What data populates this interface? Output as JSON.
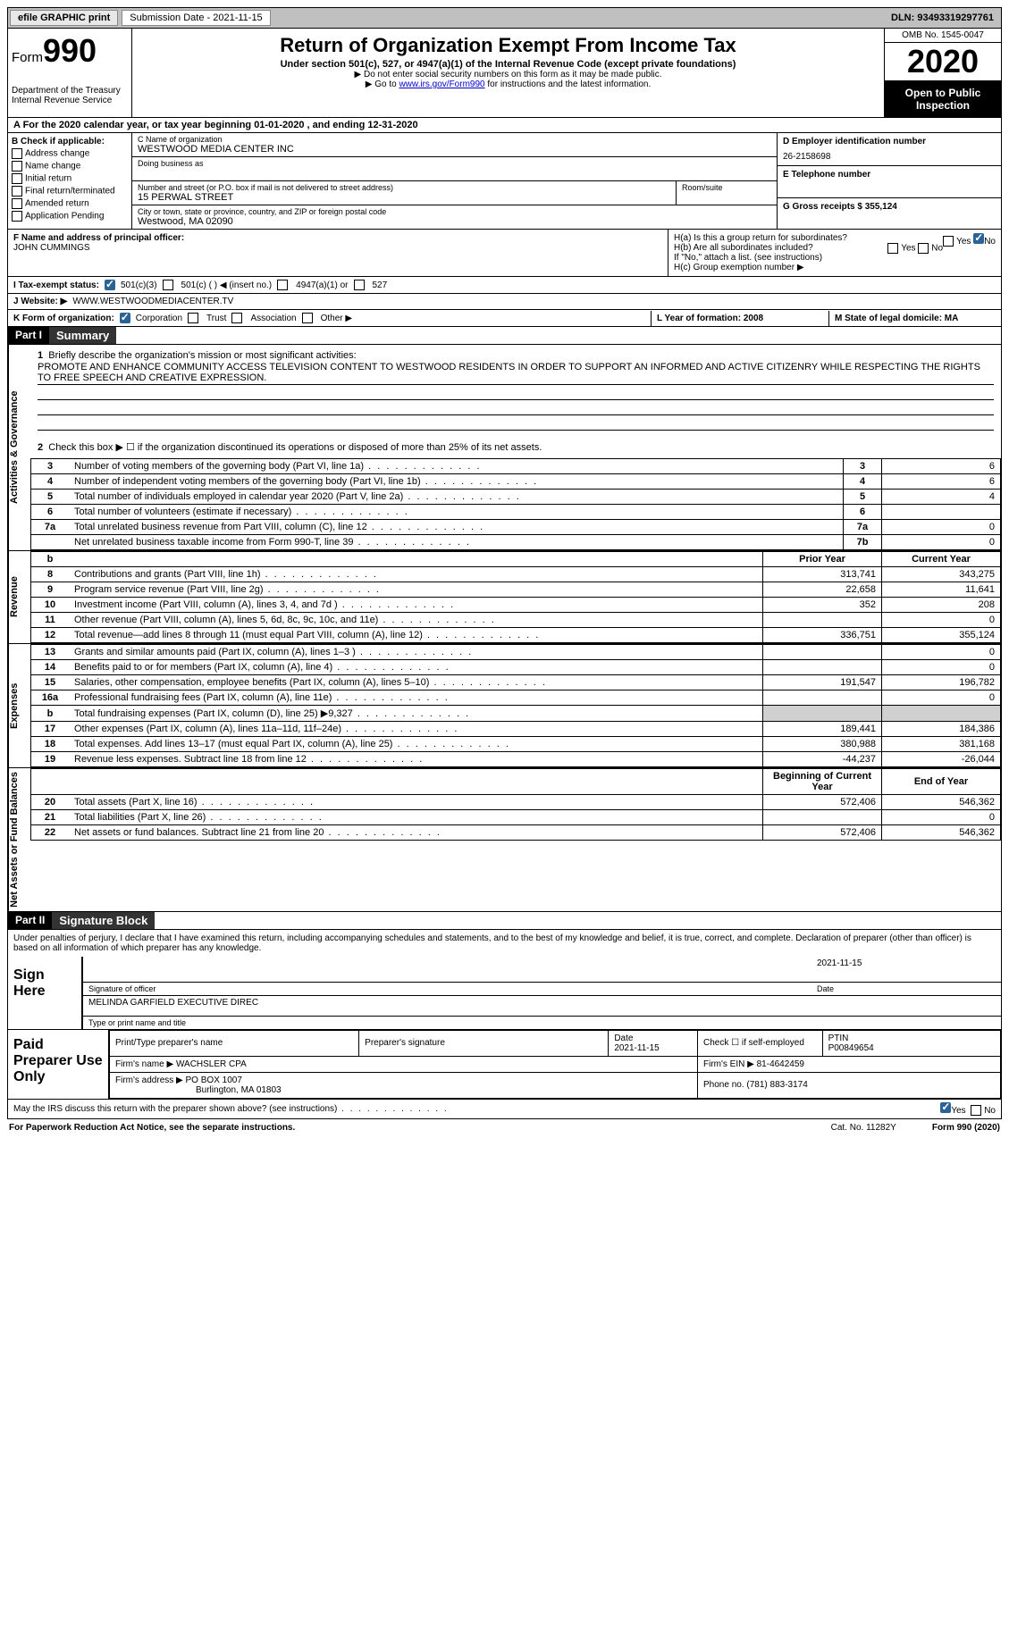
{
  "top": {
    "efile": "efile GRAPHIC print",
    "sub_label": "Submission Date - 2021-11-15",
    "dln": "DLN: 93493319297761"
  },
  "header": {
    "form_word": "Form",
    "form_num": "990",
    "dept": "Department of the Treasury\nInternal Revenue Service",
    "title": "Return of Organization Exempt From Income Tax",
    "sub": "Under section 501(c), 527, or 4947(a)(1) of the Internal Revenue Code (except private foundations)",
    "note1": "▶ Do not enter social security numbers on this form as it may be made public.",
    "note2_pre": "▶ Go to ",
    "note2_link": "www.irs.gov/Form990",
    "note2_post": " for instructions and the latest information.",
    "omb": "OMB No. 1545-0047",
    "year": "2020",
    "opi": "Open to Public Inspection"
  },
  "line_a": "A For the 2020 calendar year, or tax year beginning 01-01-2020   , and ending 12-31-2020",
  "box_b": {
    "title": "B Check if applicable:",
    "items": [
      "Address change",
      "Name change",
      "Initial return",
      "Final return/terminated",
      "Amended return",
      "Application Pending"
    ]
  },
  "box_c": {
    "name_lbl": "C Name of organization",
    "name": "WESTWOOD MEDIA CENTER INC",
    "dba_lbl": "Doing business as",
    "addr_lbl": "Number and street (or P.O. box if mail is not delivered to street address)",
    "room_lbl": "Room/suite",
    "addr": "15 PERWAL STREET",
    "city_lbl": "City or town, state or province, country, and ZIP or foreign postal code",
    "city": "Westwood, MA  02090"
  },
  "box_d": {
    "lbl": "D Employer identification number",
    "val": "26-2158698"
  },
  "box_e": {
    "lbl": "E Telephone number",
    "val": ""
  },
  "box_g": {
    "lbl": "G Gross receipts $ 355,124"
  },
  "box_f": {
    "lbl": "F Name and address of principal officer:",
    "val": "JOHN CUMMINGS"
  },
  "box_h": {
    "a": "H(a)  Is this a group return for subordinates?",
    "b": "H(b)  Are all subordinates included?",
    "note": "If \"No,\" attach a list. (see instructions)",
    "c": "H(c)  Group exemption number ▶",
    "yes": "Yes",
    "no": "No"
  },
  "line_i": {
    "lbl": "I   Tax-exempt status:",
    "o1": "501(c)(3)",
    "o2": "501(c) (  ) ◀ (insert no.)",
    "o3": "4947(a)(1) or",
    "o4": "527"
  },
  "line_j": {
    "lbl": "J   Website: ▶",
    "val": "WWW.WESTWOODMEDIACENTER.TV"
  },
  "line_k": {
    "lbl": "K Form of organization:",
    "o1": "Corporation",
    "o2": "Trust",
    "o3": "Association",
    "o4": "Other ▶"
  },
  "line_l": "L Year of formation: 2008",
  "line_m": "M State of legal domicile: MA",
  "part1": {
    "hdr": "Part I",
    "title": "Summary",
    "side_ag": "Activities & Governance",
    "side_rev": "Revenue",
    "side_exp": "Expenses",
    "side_na": "Net Assets or Fund Balances",
    "q1": "Briefly describe the organization's mission or most significant activities:",
    "mission": "PROMOTE AND ENHANCE COMMUNITY ACCESS TELEVISION CONTENT TO WESTWOOD RESIDENTS IN ORDER TO SUPPORT AN INFORMED AND ACTIVE CITIZENRY WHILE RESPECTING THE RIGHTS TO FREE SPEECH AND CREATIVE EXPRESSION.",
    "q2": "Check this box ▶ ☐  if the organization discontinued its operations or disposed of more than 25% of its net assets.",
    "rows_gov": [
      {
        "n": "3",
        "d": "Number of voting members of the governing body (Part VI, line 1a)",
        "c": "3",
        "v": "6"
      },
      {
        "n": "4",
        "d": "Number of independent voting members of the governing body (Part VI, line 1b)",
        "c": "4",
        "v": "6"
      },
      {
        "n": "5",
        "d": "Total number of individuals employed in calendar year 2020 (Part V, line 2a)",
        "c": "5",
        "v": "4"
      },
      {
        "n": "6",
        "d": "Total number of volunteers (estimate if necessary)",
        "c": "6",
        "v": ""
      },
      {
        "n": "7a",
        "d": "Total unrelated business revenue from Part VIII, column (C), line 12",
        "c": "7a",
        "v": "0"
      },
      {
        "n": "",
        "d": "Net unrelated business taxable income from Form 990-T, line 39",
        "c": "7b",
        "v": "0"
      }
    ],
    "col_hdr": {
      "b": "b",
      "py": "Prior Year",
      "cy": "Current Year"
    },
    "rows_rev": [
      {
        "n": "8",
        "d": "Contributions and grants (Part VIII, line 1h)",
        "py": "313,741",
        "cy": "343,275"
      },
      {
        "n": "9",
        "d": "Program service revenue (Part VIII, line 2g)",
        "py": "22,658",
        "cy": "11,641"
      },
      {
        "n": "10",
        "d": "Investment income (Part VIII, column (A), lines 3, 4, and 7d )",
        "py": "352",
        "cy": "208"
      },
      {
        "n": "11",
        "d": "Other revenue (Part VIII, column (A), lines 5, 6d, 8c, 9c, 10c, and 11e)",
        "py": "",
        "cy": "0"
      },
      {
        "n": "12",
        "d": "Total revenue—add lines 8 through 11 (must equal Part VIII, column (A), line 12)",
        "py": "336,751",
        "cy": "355,124"
      }
    ],
    "rows_exp": [
      {
        "n": "13",
        "d": "Grants and similar amounts paid (Part IX, column (A), lines 1–3 )",
        "py": "",
        "cy": "0"
      },
      {
        "n": "14",
        "d": "Benefits paid to or for members (Part IX, column (A), line 4)",
        "py": "",
        "cy": "0"
      },
      {
        "n": "15",
        "d": "Salaries, other compensation, employee benefits (Part IX, column (A), lines 5–10)",
        "py": "191,547",
        "cy": "196,782"
      },
      {
        "n": "16a",
        "d": "Professional fundraising fees (Part IX, column (A), line 11e)",
        "py": "",
        "cy": "0"
      },
      {
        "n": "b",
        "d": "Total fundraising expenses (Part IX, column (D), line 25) ▶9,327",
        "py": "shade",
        "cy": "shade"
      },
      {
        "n": "17",
        "d": "Other expenses (Part IX, column (A), lines 11a–11d, 11f–24e)",
        "py": "189,441",
        "cy": "184,386"
      },
      {
        "n": "18",
        "d": "Total expenses. Add lines 13–17 (must equal Part IX, column (A), line 25)",
        "py": "380,988",
        "cy": "381,168"
      },
      {
        "n": "19",
        "d": "Revenue less expenses. Subtract line 18 from line 12",
        "py": "-44,237",
        "cy": "-26,044"
      }
    ],
    "col_hdr2": {
      "by": "Beginning of Current Year",
      "ey": "End of Year"
    },
    "rows_na": [
      {
        "n": "20",
        "d": "Total assets (Part X, line 16)",
        "py": "572,406",
        "cy": "546,362"
      },
      {
        "n": "21",
        "d": "Total liabilities (Part X, line 26)",
        "py": "",
        "cy": "0"
      },
      {
        "n": "22",
        "d": "Net assets or fund balances. Subtract line 21 from line 20",
        "py": "572,406",
        "cy": "546,362"
      }
    ]
  },
  "part2": {
    "hdr": "Part II",
    "title": "Signature Block",
    "decl": "Under penalties of perjury, I declare that I have examined this return, including accompanying schedules and statements, and to the best of my knowledge and belief, it is true, correct, and complete. Declaration of preparer (other than officer) is based on all information of which preparer has any knowledge.",
    "sign_here": "Sign Here",
    "sig_officer": "Signature of officer",
    "date": "Date",
    "date_val": "2021-11-15",
    "name_title": "MELINDA GARFIELD  EXECUTIVE DIREC",
    "type_name": "Type or print name and title",
    "paid": "Paid Preparer Use Only",
    "p_name_lbl": "Print/Type preparer's name",
    "p_sig_lbl": "Preparer's signature",
    "p_date_lbl": "Date",
    "p_date": "2021-11-15",
    "p_chk": "Check ☐ if self-employed",
    "ptin_lbl": "PTIN",
    "ptin": "P00849654",
    "firm_name_lbl": "Firm's name   ▶",
    "firm_name": "WACHSLER CPA",
    "firm_ein_lbl": "Firm's EIN ▶",
    "firm_ein": "81-4642459",
    "firm_addr_lbl": "Firm's address ▶",
    "firm_addr": "PO BOX 1007",
    "firm_city": "Burlington, MA  01803",
    "phone_lbl": "Phone no.",
    "phone": "(781) 883-3174",
    "discuss": "May the IRS discuss this return with the preparer shown above? (see instructions)"
  },
  "footer": {
    "pra": "For Paperwork Reduction Act Notice, see the separate instructions.",
    "cat": "Cat. No. 11282Y",
    "form": "Form 990 (2020)"
  }
}
